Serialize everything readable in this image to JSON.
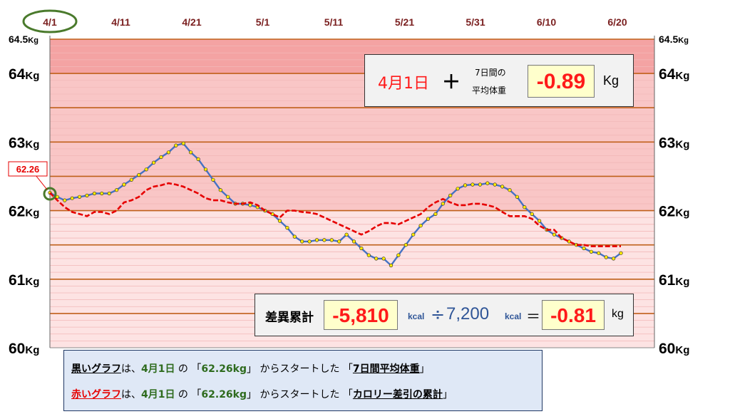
{
  "chart_data": {
    "type": "line",
    "x_labels": [
      "4/1",
      "4/11",
      "4/21",
      "5/1",
      "5/11",
      "5/21",
      "5/31",
      "6/10",
      "6/20"
    ],
    "y_ticks_left": [
      {
        "value": 64.5,
        "label": "64.5",
        "unit": "Kg",
        "size": "small"
      },
      {
        "value": 64,
        "label": "64",
        "unit": "Kg",
        "size": "big"
      },
      {
        "value": 63,
        "label": "63",
        "unit": "Kg",
        "size": "big"
      },
      {
        "value": 62,
        "label": "62",
        "unit": "Kg",
        "size": "big"
      },
      {
        "value": 61,
        "label": "61",
        "unit": "Kg",
        "size": "big"
      },
      {
        "value": 60,
        "label": "60",
        "unit": "Kg",
        "size": "big"
      }
    ],
    "ylim": [
      60,
      64.5
    ],
    "start_label": "62.26",
    "series": [
      {
        "name": "黒いグラフ",
        "color": "#4472c4",
        "marker": "#ffeb00",
        "values": [
          62.26,
          62.2,
          62.15,
          62.18,
          62.2,
          62.22,
          62.25,
          62.25,
          62.25,
          62.3,
          62.38,
          62.45,
          62.52,
          62.6,
          62.7,
          62.78,
          62.85,
          62.95,
          62.98,
          62.85,
          62.75,
          62.6,
          62.45,
          62.3,
          62.2,
          62.1,
          62.1,
          62.08,
          62.05,
          62.0,
          61.95,
          61.85,
          61.75,
          61.62,
          61.55,
          61.55,
          61.57,
          61.57,
          61.57,
          61.55,
          61.65,
          61.55,
          61.45,
          61.35,
          61.3,
          61.3,
          61.2,
          61.35,
          61.5,
          61.65,
          61.78,
          61.88,
          61.95,
          62.1,
          62.22,
          62.32,
          62.37,
          62.38,
          62.38,
          62.4,
          62.38,
          62.35,
          62.3,
          62.2,
          62.05,
          61.95,
          61.85,
          61.72,
          61.65,
          61.6,
          61.55,
          61.5,
          61.45,
          61.4,
          61.38,
          61.32,
          61.3,
          61.38
        ]
      },
      {
        "name": "赤いグラフ",
        "color": "#e60000",
        "values": [
          62.26,
          62.15,
          62.05,
          61.98,
          61.95,
          61.92,
          61.98,
          61.98,
          61.95,
          62.0,
          62.12,
          62.15,
          62.2,
          62.3,
          62.35,
          62.37,
          62.4,
          62.38,
          62.35,
          62.3,
          62.25,
          62.18,
          62.15,
          62.15,
          62.12,
          62.1,
          62.1,
          62.12,
          62.08,
          62.0,
          61.95,
          61.9,
          62.0,
          62.0,
          61.98,
          61.97,
          61.95,
          61.9,
          61.85,
          61.8,
          61.75,
          61.7,
          61.65,
          61.7,
          61.77,
          61.82,
          61.82,
          61.8,
          61.85,
          61.9,
          61.95,
          62.05,
          62.12,
          62.17,
          62.12,
          62.08,
          62.08,
          62.1,
          62.1,
          62.08,
          62.05,
          61.98,
          61.92,
          61.92,
          61.92,
          61.88,
          61.78,
          61.72,
          61.72,
          61.6,
          61.55,
          61.5,
          61.5,
          61.48,
          61.48,
          61.48,
          61.48,
          61.48
        ]
      }
    ]
  },
  "info_top": {
    "date": "4月1日",
    "plus": "＋",
    "label_line1": "7日間の",
    "label_line2": "平均体重",
    "value": "-0.89",
    "unit": "Kg"
  },
  "info_bottom": {
    "label": "差異累計",
    "value": "-5,810",
    "kcal1": "kcal",
    "divide": "÷",
    "divisor": "7,200",
    "kcal2": "kcal",
    "equals": "＝",
    "result": "-0.81",
    "unit": "kg"
  },
  "notes": {
    "line1": {
      "p1": "黒いグラフ",
      "p2": "は、",
      "p3": "4月1日",
      "p4": " の 「",
      "p5": "62.26kg",
      "p6": "」 からスタートした 「",
      "p7": "7日間平均体重",
      "p8": "」"
    },
    "line2": {
      "p1": "赤いグラフ",
      "p2": "は、",
      "p3": "4月1日",
      "p4": " の 「",
      "p5": "62.26kg",
      "p6": "」 からスタートした 「",
      "p7": "カロリー差引の累計",
      "p8": "」"
    }
  },
  "colors": {
    "black_series_label": "#000000",
    "red_series_label": "#e60000",
    "green_text": "#2e6b1e",
    "circle": "#4a7a2c"
  }
}
